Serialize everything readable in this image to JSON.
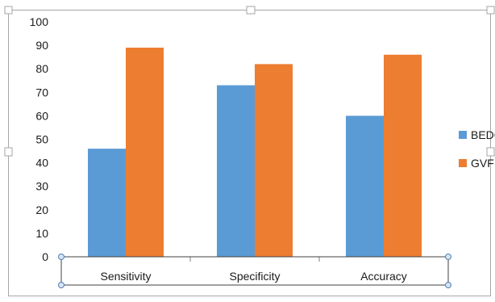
{
  "chart_data": {
    "type": "bar",
    "categories": [
      "Sensitivity",
      "Specificity",
      "Accuracy"
    ],
    "series": [
      {
        "name": "BEDC",
        "values": [
          46,
          73,
          60
        ],
        "color": "#5B9BD5"
      },
      {
        "name": "GVF",
        "values": [
          89,
          82,
          86
        ],
        "color": "#ED7D31"
      }
    ],
    "ylim": [
      0,
      100
    ],
    "yticks": [
      0,
      10,
      20,
      30,
      40,
      50,
      60,
      70,
      80,
      90,
      100
    ],
    "grid": false,
    "legend": "right",
    "selected_element": "x-axis"
  }
}
